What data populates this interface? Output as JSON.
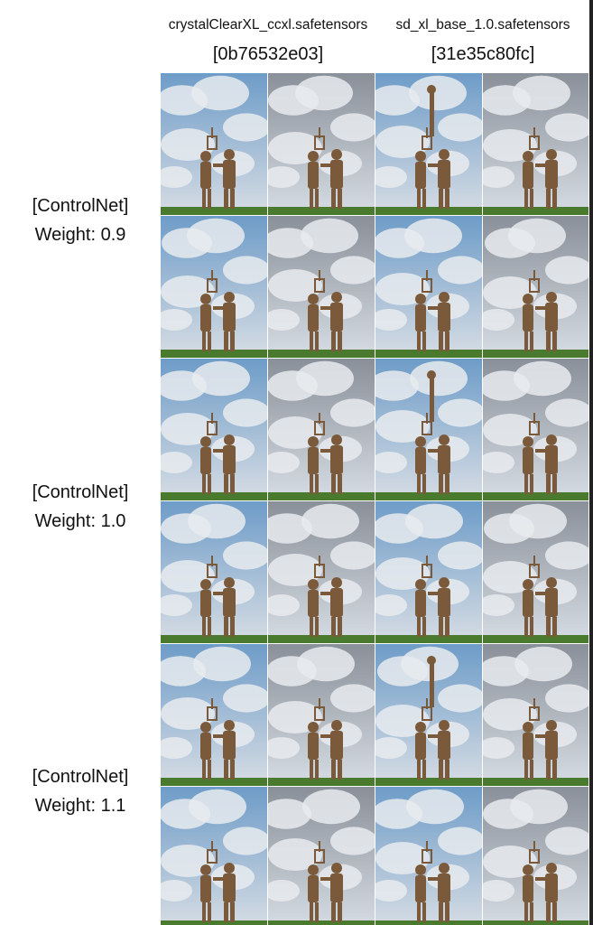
{
  "columns": [
    {
      "model": "crystalClearXL_ccxl.safetensors",
      "hash": "[0b76532e03]"
    },
    {
      "model": "sd_xl_base_1.0.safetensors",
      "hash": "[31e35c80fc]"
    }
  ],
  "rows": [
    {
      "line1": "[ControlNet]",
      "line2": "Weight: 0.9"
    },
    {
      "line1": "[ControlNet]",
      "line2": "Weight: 1.0"
    },
    {
      "line1": "[ControlNet]",
      "line2": "Weight: 1.1"
    }
  ],
  "images": {
    "subject": "bronze statue of two workers with lantern under cloudy sky",
    "count_per_row_group": 8,
    "colors": {
      "sky_blue": "#6e9cc8",
      "cloud": "#e8ebef",
      "bronze": "#7a5a3a",
      "grass": "#4a7a2e"
    }
  }
}
